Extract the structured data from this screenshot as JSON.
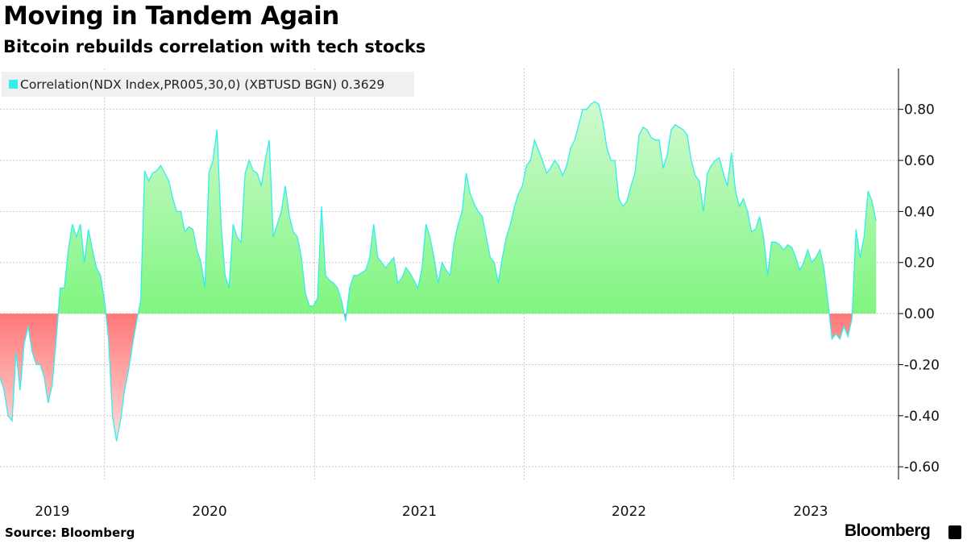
{
  "title": "Moving in Tandem Again",
  "subtitle": "Bitcoin rebuilds correlation with tech stocks",
  "source": "Source: Bloomberg",
  "brand": "Bloomberg",
  "colors": {
    "line": "#33eeee",
    "positive_fill": "#80f580",
    "negative_fill": "#ff8080",
    "legend_swatch": "#33eeee"
  },
  "chart_data": {
    "type": "area",
    "title": "Moving in Tandem Again",
    "subtitle": "Bitcoin rebuilds correlation with tech stocks",
    "legend": {
      "label": "Correlation(NDX Index,PR005,30,0) (XBTUSD BGN) 0.3629",
      "placement": "top-left"
    },
    "xlabel": "",
    "ylabel": "",
    "xlim": [
      "2019-07-03",
      "2023-10-15"
    ],
    "ylim": [
      -0.65,
      0.96
    ],
    "y_ticks": [
      0.8,
      0.6,
      0.4,
      0.2,
      0.0,
      -0.2,
      -0.4,
      -0.6
    ],
    "y_tick_labels": [
      "0.80",
      "0.60",
      "0.40",
      "0.20",
      "0.00",
      "-0.20",
      "-0.40",
      "-0.60"
    ],
    "y_axis_side": "right",
    "x_tick_labels": [
      "2019",
      "2020",
      "2021",
      "2022",
      "2023"
    ],
    "x_year_boundaries": [
      "2020-01-01",
      "2021-01-01",
      "2022-01-01",
      "2023-01-01"
    ],
    "grid": true,
    "series": [
      {
        "name": "Correlation(NDX Index,PR005,30,0) (XBTUSD BGN)",
        "last_value": 0.3629,
        "dates": [
          "2019-07-03",
          "2019-07-10",
          "2019-07-17",
          "2019-07-24",
          "2019-07-31",
          "2019-08-07",
          "2019-08-14",
          "2019-08-21",
          "2019-08-28",
          "2019-09-04",
          "2019-09-11",
          "2019-09-18",
          "2019-09-25",
          "2019-10-02",
          "2019-10-09",
          "2019-10-16",
          "2019-10-23",
          "2019-10-30",
          "2019-11-06",
          "2019-11-13",
          "2019-11-20",
          "2019-11-27",
          "2019-12-04",
          "2019-12-11",
          "2019-12-18",
          "2019-12-25",
          "2020-01-01",
          "2020-01-08",
          "2020-01-15",
          "2020-01-22",
          "2020-01-29",
          "2020-02-05",
          "2020-02-12",
          "2020-02-19",
          "2020-02-26",
          "2020-03-04",
          "2020-03-11",
          "2020-03-18",
          "2020-03-25",
          "2020-04-01",
          "2020-04-08",
          "2020-04-15",
          "2020-04-22",
          "2020-04-29",
          "2020-05-06",
          "2020-05-13",
          "2020-05-20",
          "2020-05-27",
          "2020-06-03",
          "2020-06-10",
          "2020-06-17",
          "2020-06-24",
          "2020-07-01",
          "2020-07-08",
          "2020-07-15",
          "2020-07-22",
          "2020-07-29",
          "2020-08-05",
          "2020-08-12",
          "2020-08-19",
          "2020-08-26",
          "2020-09-02",
          "2020-09-09",
          "2020-09-16",
          "2020-09-23",
          "2020-09-30",
          "2020-10-07",
          "2020-10-14",
          "2020-10-21",
          "2020-10-28",
          "2020-11-04",
          "2020-11-11",
          "2020-11-18",
          "2020-11-25",
          "2020-12-02",
          "2020-12-09",
          "2020-12-16",
          "2020-12-23",
          "2020-12-30",
          "2021-01-06",
          "2021-01-13",
          "2021-01-20",
          "2021-01-27",
          "2021-02-03",
          "2021-02-10",
          "2021-02-17",
          "2021-02-24",
          "2021-03-03",
          "2021-03-10",
          "2021-03-17",
          "2021-03-24",
          "2021-03-31",
          "2021-04-07",
          "2021-04-14",
          "2021-04-21",
          "2021-04-28",
          "2021-05-05",
          "2021-05-12",
          "2021-05-19",
          "2021-05-26",
          "2021-06-02",
          "2021-06-09",
          "2021-06-16",
          "2021-06-23",
          "2021-06-30",
          "2021-07-07",
          "2021-07-14",
          "2021-07-21",
          "2021-07-28",
          "2021-08-04",
          "2021-08-11",
          "2021-08-18",
          "2021-08-25",
          "2021-09-01",
          "2021-09-08",
          "2021-09-15",
          "2021-09-22",
          "2021-09-29",
          "2021-10-06",
          "2021-10-13",
          "2021-10-20",
          "2021-10-27",
          "2021-11-03",
          "2021-11-10",
          "2021-11-17",
          "2021-11-24",
          "2021-12-01",
          "2021-12-08",
          "2021-12-15",
          "2021-12-22",
          "2021-12-29",
          "2022-01-05",
          "2022-01-12",
          "2022-01-19",
          "2022-01-26",
          "2022-02-02",
          "2022-02-09",
          "2022-02-16",
          "2022-02-23",
          "2022-03-02",
          "2022-03-09",
          "2022-03-16",
          "2022-03-23",
          "2022-03-30",
          "2022-04-06",
          "2022-04-13",
          "2022-04-20",
          "2022-04-27",
          "2022-05-04",
          "2022-05-11",
          "2022-05-18",
          "2022-05-25",
          "2022-06-01",
          "2022-06-08",
          "2022-06-15",
          "2022-06-22",
          "2022-06-29",
          "2022-07-06",
          "2022-07-13",
          "2022-07-20",
          "2022-07-27",
          "2022-08-03",
          "2022-08-10",
          "2022-08-17",
          "2022-08-24",
          "2022-08-31",
          "2022-09-07",
          "2022-09-14",
          "2022-09-21",
          "2022-09-28",
          "2022-10-05",
          "2022-10-12",
          "2022-10-19",
          "2022-10-26",
          "2022-11-02",
          "2022-11-09",
          "2022-11-16",
          "2022-11-23",
          "2022-11-30",
          "2022-12-07",
          "2022-12-14",
          "2022-12-21",
          "2022-12-28",
          "2023-01-04",
          "2023-01-11",
          "2023-01-18",
          "2023-01-25",
          "2023-02-01",
          "2023-02-08",
          "2023-02-15",
          "2023-02-22",
          "2023-03-01",
          "2023-03-08",
          "2023-03-15",
          "2023-03-22",
          "2023-03-29",
          "2023-04-05",
          "2023-04-12",
          "2023-04-19",
          "2023-04-26",
          "2023-05-03",
          "2023-05-10",
          "2023-05-17",
          "2023-05-24",
          "2023-05-31",
          "2023-06-07",
          "2023-06-14",
          "2023-06-21",
          "2023-06-28",
          "2023-07-05",
          "2023-07-12",
          "2023-07-19",
          "2023-07-26",
          "2023-08-02",
          "2023-08-09",
          "2023-08-16",
          "2023-08-23",
          "2023-08-30",
          "2023-09-06"
        ],
        "values": [
          -0.25,
          -0.3,
          -0.4,
          -0.42,
          -0.15,
          -0.3,
          -0.12,
          -0.05,
          -0.15,
          -0.2,
          -0.2,
          -0.25,
          -0.35,
          -0.28,
          -0.1,
          0.1,
          0.1,
          0.25,
          0.35,
          0.3,
          0.35,
          0.2,
          0.33,
          0.25,
          0.18,
          0.15,
          0.05,
          -0.1,
          -0.4,
          -0.5,
          -0.42,
          -0.3,
          -0.22,
          -0.12,
          -0.03,
          0.05,
          0.56,
          0.52,
          0.55,
          0.56,
          0.58,
          0.55,
          0.52,
          0.45,
          0.4,
          0.4,
          0.32,
          0.34,
          0.33,
          0.25,
          0.2,
          0.1,
          0.55,
          0.6,
          0.72,
          0.35,
          0.15,
          0.1,
          0.35,
          0.3,
          0.28,
          0.55,
          0.6,
          0.56,
          0.55,
          0.5,
          0.6,
          0.68,
          0.3,
          0.35,
          0.4,
          0.5,
          0.38,
          0.32,
          0.3,
          0.22,
          0.08,
          0.03,
          0.03,
          0.06,
          0.42,
          0.15,
          0.13,
          0.12,
          0.1,
          0.05,
          -0.03,
          0.1,
          0.15,
          0.15,
          0.16,
          0.17,
          0.22,
          0.35,
          0.22,
          0.2,
          0.18,
          0.2,
          0.22,
          0.12,
          0.14,
          0.18,
          0.16,
          0.13,
          0.1,
          0.18,
          0.35,
          0.3,
          0.22,
          0.12,
          0.2,
          0.17,
          0.15,
          0.28,
          0.35,
          0.4,
          0.55,
          0.47,
          0.43,
          0.4,
          0.38,
          0.3,
          0.22,
          0.2,
          0.12,
          0.22,
          0.3,
          0.35,
          0.42,
          0.47,
          0.5,
          0.58,
          0.6,
          0.68,
          0.64,
          0.6,
          0.55,
          0.57,
          0.6,
          0.58,
          0.54,
          0.58,
          0.65,
          0.68,
          0.74,
          0.8,
          0.8,
          0.82,
          0.83,
          0.82,
          0.75,
          0.65,
          0.6,
          0.6,
          0.45,
          0.42,
          0.44,
          0.5,
          0.55,
          0.7,
          0.73,
          0.72,
          0.69,
          0.68,
          0.68,
          0.57,
          0.62,
          0.72,
          0.74,
          0.73,
          0.72,
          0.7,
          0.6,
          0.54,
          0.52,
          0.4,
          0.55,
          0.58,
          0.6,
          0.61,
          0.55,
          0.5,
          0.63,
          0.48,
          0.42,
          0.45,
          0.4,
          0.32,
          0.33,
          0.38,
          0.3,
          0.15,
          0.28,
          0.28,
          0.27,
          0.25,
          0.27,
          0.26,
          0.22,
          0.17,
          0.2,
          0.25,
          0.2,
          0.22,
          0.25,
          0.18,
          0.05,
          -0.1,
          -0.08,
          -0.1,
          -0.05,
          -0.09,
          -0.02,
          0.33,
          0.22,
          0.3,
          0.48,
          0.44,
          0.3629
        ]
      }
    ]
  }
}
